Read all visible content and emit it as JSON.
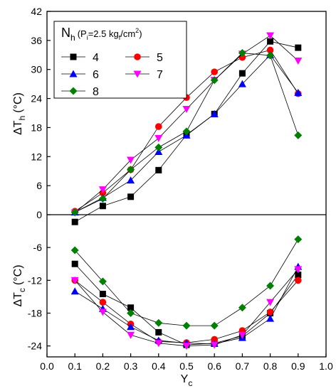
{
  "chart_data": [
    {
      "type": "line",
      "panel": "top",
      "ylabel": "ΔT_h (°C)",
      "ylabel_main": "ΔT",
      "ylabel_sub": "h",
      "ylabel_unit": "(°C)",
      "xlim": [
        0.0,
        1.0
      ],
      "ylim": [
        0,
        42
      ],
      "yticks": [
        "0",
        "6",
        "12",
        "18",
        "24",
        "30",
        "36",
        "42"
      ],
      "ytick_values": [
        0,
        6,
        12,
        18,
        24,
        30,
        36,
        42
      ],
      "x": [
        0.1,
        0.2,
        0.3,
        0.4,
        0.5,
        0.6,
        0.7,
        0.8,
        0.9
      ],
      "series": [
        {
          "name": "4",
          "color": "#000000",
          "marker": "square",
          "values": [
            -1.5,
            1.8,
            3.7,
            9.2,
            16.5,
            20.8,
            29.2,
            35.8,
            34.5
          ]
        },
        {
          "name": "5",
          "color": "#ff0000",
          "marker": "circle",
          "values": [
            0.7,
            4.5,
            9.3,
            18.2,
            24.2,
            29.5,
            32.5,
            34.0,
            25.0
          ]
        },
        {
          "name": "6",
          "color": "#0000ff",
          "marker": "triangle-up",
          "values": [
            0.5,
            3.5,
            7.1,
            13.0,
            16.4,
            20.8,
            27.0,
            33.0,
            25.2
          ]
        },
        {
          "name": "7",
          "color": "#ff00ff",
          "marker": "triangle-down",
          "values": [
            0.4,
            5.2,
            11.3,
            15.8,
            21.8,
            27.8,
            33.2,
            37.0,
            31.8
          ]
        },
        {
          "name": "8",
          "color": "#008000",
          "marker": "diamond",
          "values": [
            0.5,
            3.3,
            9.3,
            13.9,
            17.2,
            27.8,
            33.4,
            32.9,
            16.4
          ]
        }
      ]
    },
    {
      "type": "line",
      "panel": "bottom",
      "xlabel": "Y_c",
      "xlabel_main": "Y",
      "xlabel_sub": "c",
      "ylabel": "ΔT_c (°C)",
      "ylabel_main": "ΔT",
      "ylabel_sub": "c",
      "ylabel_unit": "(°C)",
      "xlim": [
        0.0,
        1.0
      ],
      "ylim": [
        -26,
        0
      ],
      "xticks": [
        "0.0",
        "0.1",
        "0.2",
        "0.3",
        "0.4",
        "0.5",
        "0.6",
        "0.7",
        "0.8",
        "0.9",
        "1.0"
      ],
      "xtick_values": [
        0.0,
        0.1,
        0.2,
        0.3,
        0.4,
        0.5,
        0.6,
        0.7,
        0.8,
        0.9,
        1.0
      ],
      "yticks": [
        "-6",
        "-12",
        "-18",
        "-24"
      ],
      "ytick_values": [
        -6,
        -12,
        -18,
        -24
      ],
      "x": [
        0.1,
        0.2,
        0.3,
        0.4,
        0.5,
        0.6,
        0.7,
        0.8,
        0.9
      ],
      "series": [
        {
          "name": "4",
          "color": "#000000",
          "marker": "square",
          "values": [
            -9.0,
            -14.5,
            -17.0,
            -21.5,
            -23.8,
            -23.5,
            -22.2,
            -18.0,
            -11.0
          ]
        },
        {
          "name": "5",
          "color": "#ff0000",
          "marker": "circle",
          "values": [
            -12.0,
            -16.0,
            -20.0,
            -23.2,
            -23.4,
            -22.8,
            -21.2,
            -17.8,
            -12.0
          ]
        },
        {
          "name": "6",
          "color": "#0000ff",
          "marker": "triangle-up",
          "values": [
            -14.0,
            -17.2,
            -20.5,
            -23.0,
            -23.5,
            -23.6,
            -22.5,
            -19.0,
            -9.5
          ]
        },
        {
          "name": "7",
          "color": "#ff00ff",
          "marker": "triangle-down",
          "values": [
            -12.0,
            -17.8,
            -22.0,
            -23.5,
            -24.0,
            -23.8,
            -22.0,
            -16.0,
            -10.0
          ]
        },
        {
          "name": "8",
          "color": "#008000",
          "marker": "diamond",
          "values": [
            -6.5,
            -12.2,
            -18.0,
            -19.8,
            -20.3,
            -20.3,
            -17.0,
            -13.0,
            -4.5
          ]
        }
      ]
    }
  ],
  "legend": {
    "title_main": "N",
    "title_sub": "h",
    "cond_open": "(P",
    "cond_sub_i": "i",
    "cond_mid": "=2.5 kg",
    "cond_sub_f": "f",
    "cond_unit": "/cm",
    "cond_sup": "2",
    "cond_close": ")",
    "placement": "top-left",
    "entries": [
      "4",
      "5",
      "6",
      "7",
      "8"
    ]
  }
}
